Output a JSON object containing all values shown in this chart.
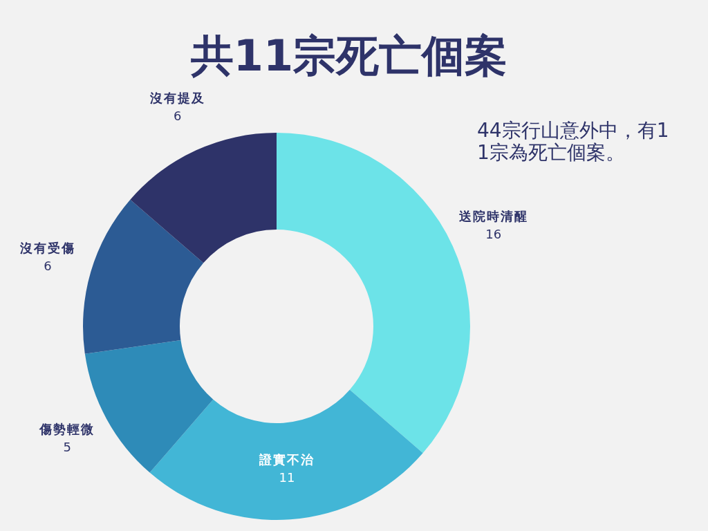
{
  "chart_data": {
    "type": "donut",
    "title": "共11宗死亡個案",
    "annotations": [
      "44宗行山意外中，有11宗為死亡個案。"
    ],
    "categories": [
      "送院時清醒",
      "證實不治",
      "傷勢輕微",
      "沒有受傷",
      "沒有提及"
    ],
    "values": [
      16,
      11,
      5,
      6,
      6
    ],
    "colors": [
      "#6ce3e8",
      "#42b6d6",
      "#2e8bb8",
      "#2c5b94",
      "#2e3369"
    ],
    "data_labels": true
  }
}
